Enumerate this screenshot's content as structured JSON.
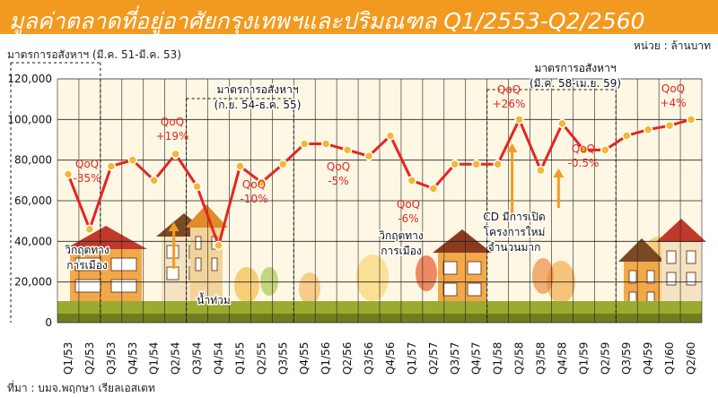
{
  "header": {
    "title": "มูลค่าตลาดที่อยู่อาศัยกรุงเทพฯและปริมณฑล Q1/2553-Q2/2560",
    "unit": "หน่วย : ล้านบาท",
    "note": "มาตรการอสังหาฯ (มี.ค. 51-มี.ค. 53)",
    "source": "ที่มา : บมจ.พฤกษา เรียลเอสเตท"
  },
  "colors": {
    "title_bg": "#f29a1f",
    "line": "#e52521",
    "marker": "#f4b731",
    "plot_bg": "#fdf7e3",
    "grid": "#222222",
    "ground": "#8a9a27"
  },
  "chart_data": {
    "type": "line",
    "title": "มูลค่าตลาดที่อยู่อาศัยกรุงเทพฯและปริมณฑล Q1/2553-Q2/2560",
    "ylim": [
      0,
      120000
    ],
    "yticks": [
      "0",
      "20,000",
      "40,000",
      "60,000",
      "80,000",
      "100,000",
      "120,000"
    ],
    "yticks_values": [
      0,
      20000,
      40000,
      60000,
      80000,
      100000,
      120000
    ],
    "grid": true,
    "categories": [
      "Q1/53",
      "Q2/53",
      "Q3/53",
      "Q4/53",
      "Q1/54",
      "Q2/54",
      "Q3/54",
      "Q4/54",
      "Q1/55",
      "Q2/55",
      "Q3/55",
      "Q4/55",
      "Q1/56",
      "Q2/56",
      "Q3/56",
      "Q4/56",
      "Q1/57",
      "Q2/57",
      "Q3/57",
      "Q4/57",
      "Q1/58",
      "Q2/58",
      "Q3/58",
      "Q4/58",
      "Q1/59",
      "Q2/59",
      "Q3/59",
      "Q4/59",
      "Q1/60",
      "Q2/60"
    ],
    "series": [
      {
        "values": [
          73000,
          46000,
          77000,
          80000,
          70000,
          83000,
          67000,
          38000,
          77000,
          69000,
          78000,
          88000,
          88000,
          85000,
          82000,
          92000,
          70000,
          66000,
          78000,
          78000,
          78000,
          100000,
          75000,
          98000,
          85000,
          85000,
          92000,
          95000,
          97000,
          100000
        ]
      }
    ],
    "annotations": [
      {
        "text": "QoQ",
        "sub": "-35%"
      },
      {
        "text": "QoQ",
        "sub": "+19%"
      },
      {
        "text": "QoQ",
        "sub": "-10%"
      },
      {
        "text": "QoQ",
        "sub": "-5%"
      },
      {
        "text": "QoQ",
        "sub": "-6%"
      },
      {
        "text": "QoQ",
        "sub": "+26%"
      },
      {
        "text": "QoQ",
        "sub": "-0.5%"
      },
      {
        "text": "QoQ",
        "sub": "+4%"
      }
    ],
    "events": [
      {
        "lines": [
          "มาตรการอสังหาฯ",
          "(ก.ย. 54-ธ.ค. 55)"
        ]
      },
      {
        "lines": [
          "มาตรการอสังหาฯ",
          "(มี.ค. 58-เม.ย. 59)"
        ]
      },
      {
        "lines": [
          "วิกฤตทาง",
          "การเมือง"
        ]
      },
      {
        "lines": [
          "น้ำท่วม"
        ]
      },
      {
        "lines": [
          "วิกฤตทาง",
          "การเมือง"
        ]
      },
      {
        "lines": [
          "CD มีการเปิด",
          "โครงการใหม่",
          "จำนวนมาก"
        ]
      }
    ]
  }
}
